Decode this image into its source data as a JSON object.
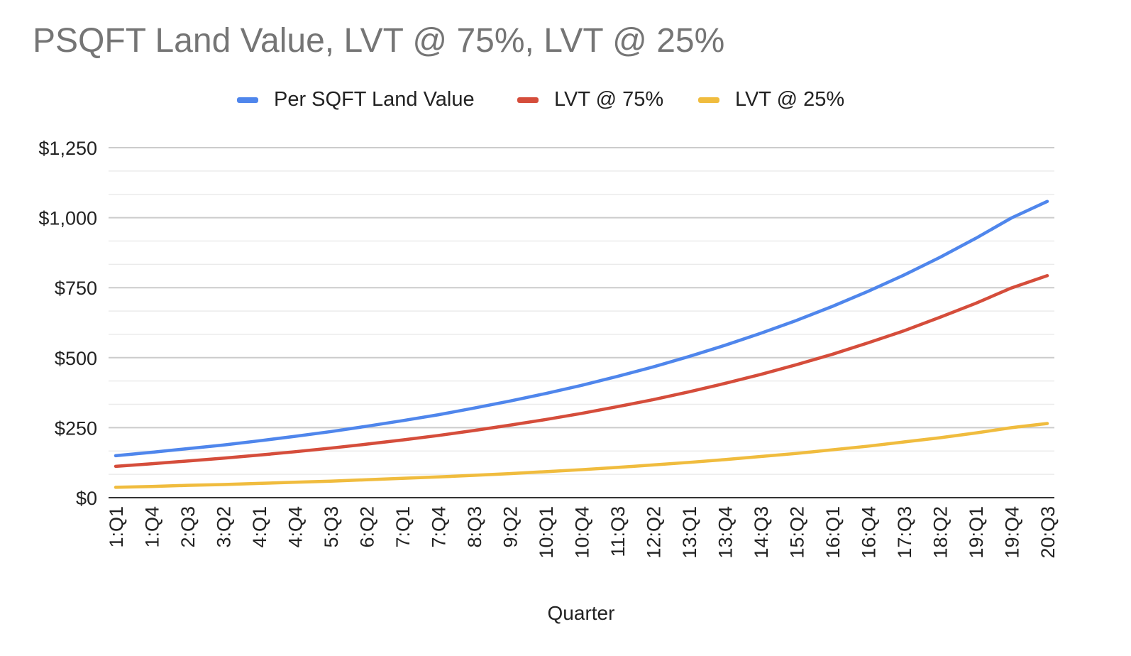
{
  "chart_data": {
    "type": "line",
    "title": "PSQFT Land Value, LVT @ 75%, LVT @ 25%",
    "xlabel": "Quarter",
    "ylabel": "",
    "ylim": [
      0,
      1250
    ],
    "yticks": [
      "$0",
      "$250",
      "$500",
      "$750",
      "$1,000",
      "$1,250"
    ],
    "ytick_values": [
      0,
      250,
      500,
      750,
      1000,
      1250
    ],
    "grid": true,
    "legend_position": "top",
    "x_tick_labels": [
      "1:Q1",
      "1:Q4",
      "2:Q3",
      "3:Q2",
      "4:Q1",
      "4:Q4",
      "5:Q3",
      "6:Q2",
      "7:Q1",
      "7:Q4",
      "8:Q3",
      "9:Q2",
      "10:Q1",
      "10:Q4",
      "11:Q3",
      "12:Q2",
      "13:Q1",
      "13:Q4",
      "14:Q3",
      "15:Q2",
      "16:Q1",
      "16:Q4",
      "17:Q3",
      "18:Q2",
      "19:Q1",
      "19:Q4",
      "20:Q3"
    ],
    "x": [
      "1:Q1",
      "1:Q4",
      "2:Q3",
      "3:Q2",
      "4:Q1",
      "4:Q4",
      "5:Q3",
      "6:Q2",
      "7:Q1",
      "7:Q4",
      "8:Q3",
      "9:Q2",
      "10:Q1",
      "10:Q4",
      "11:Q3",
      "12:Q2",
      "13:Q1",
      "13:Q4",
      "14:Q3",
      "15:Q2",
      "16:Q1",
      "16:Q4",
      "17:Q3",
      "18:Q2",
      "19:Q1",
      "19:Q4",
      "20:Q3"
    ],
    "series": [
      {
        "name": "Per SQFT Land Value",
        "color": "#4f86ec",
        "values": [
          150,
          162,
          175,
          188,
          203,
          219,
          236,
          255,
          275,
          296,
          320,
          345,
          372,
          401,
          433,
          467,
          504,
          544,
          587,
          633,
          683,
          737,
          795,
          858,
          926,
          999,
          1058
        ]
      },
      {
        "name": "LVT @ 75%",
        "color": "#d54d3b",
        "values": [
          112,
          121,
          131,
          141,
          152,
          164,
          177,
          191,
          206,
          222,
          240,
          259,
          279,
          301,
          325,
          350,
          378,
          408,
          440,
          475,
          512,
          553,
          596,
          644,
          694,
          749,
          793
        ]
      },
      {
        "name": "LVT @ 25%",
        "color": "#f0bc3e",
        "values": [
          37,
          40,
          44,
          47,
          51,
          55,
          59,
          64,
          69,
          74,
          80,
          86,
          93,
          100,
          108,
          117,
          126,
          136,
          147,
          158,
          171,
          184,
          199,
          214,
          231,
          250,
          265
        ]
      }
    ]
  }
}
